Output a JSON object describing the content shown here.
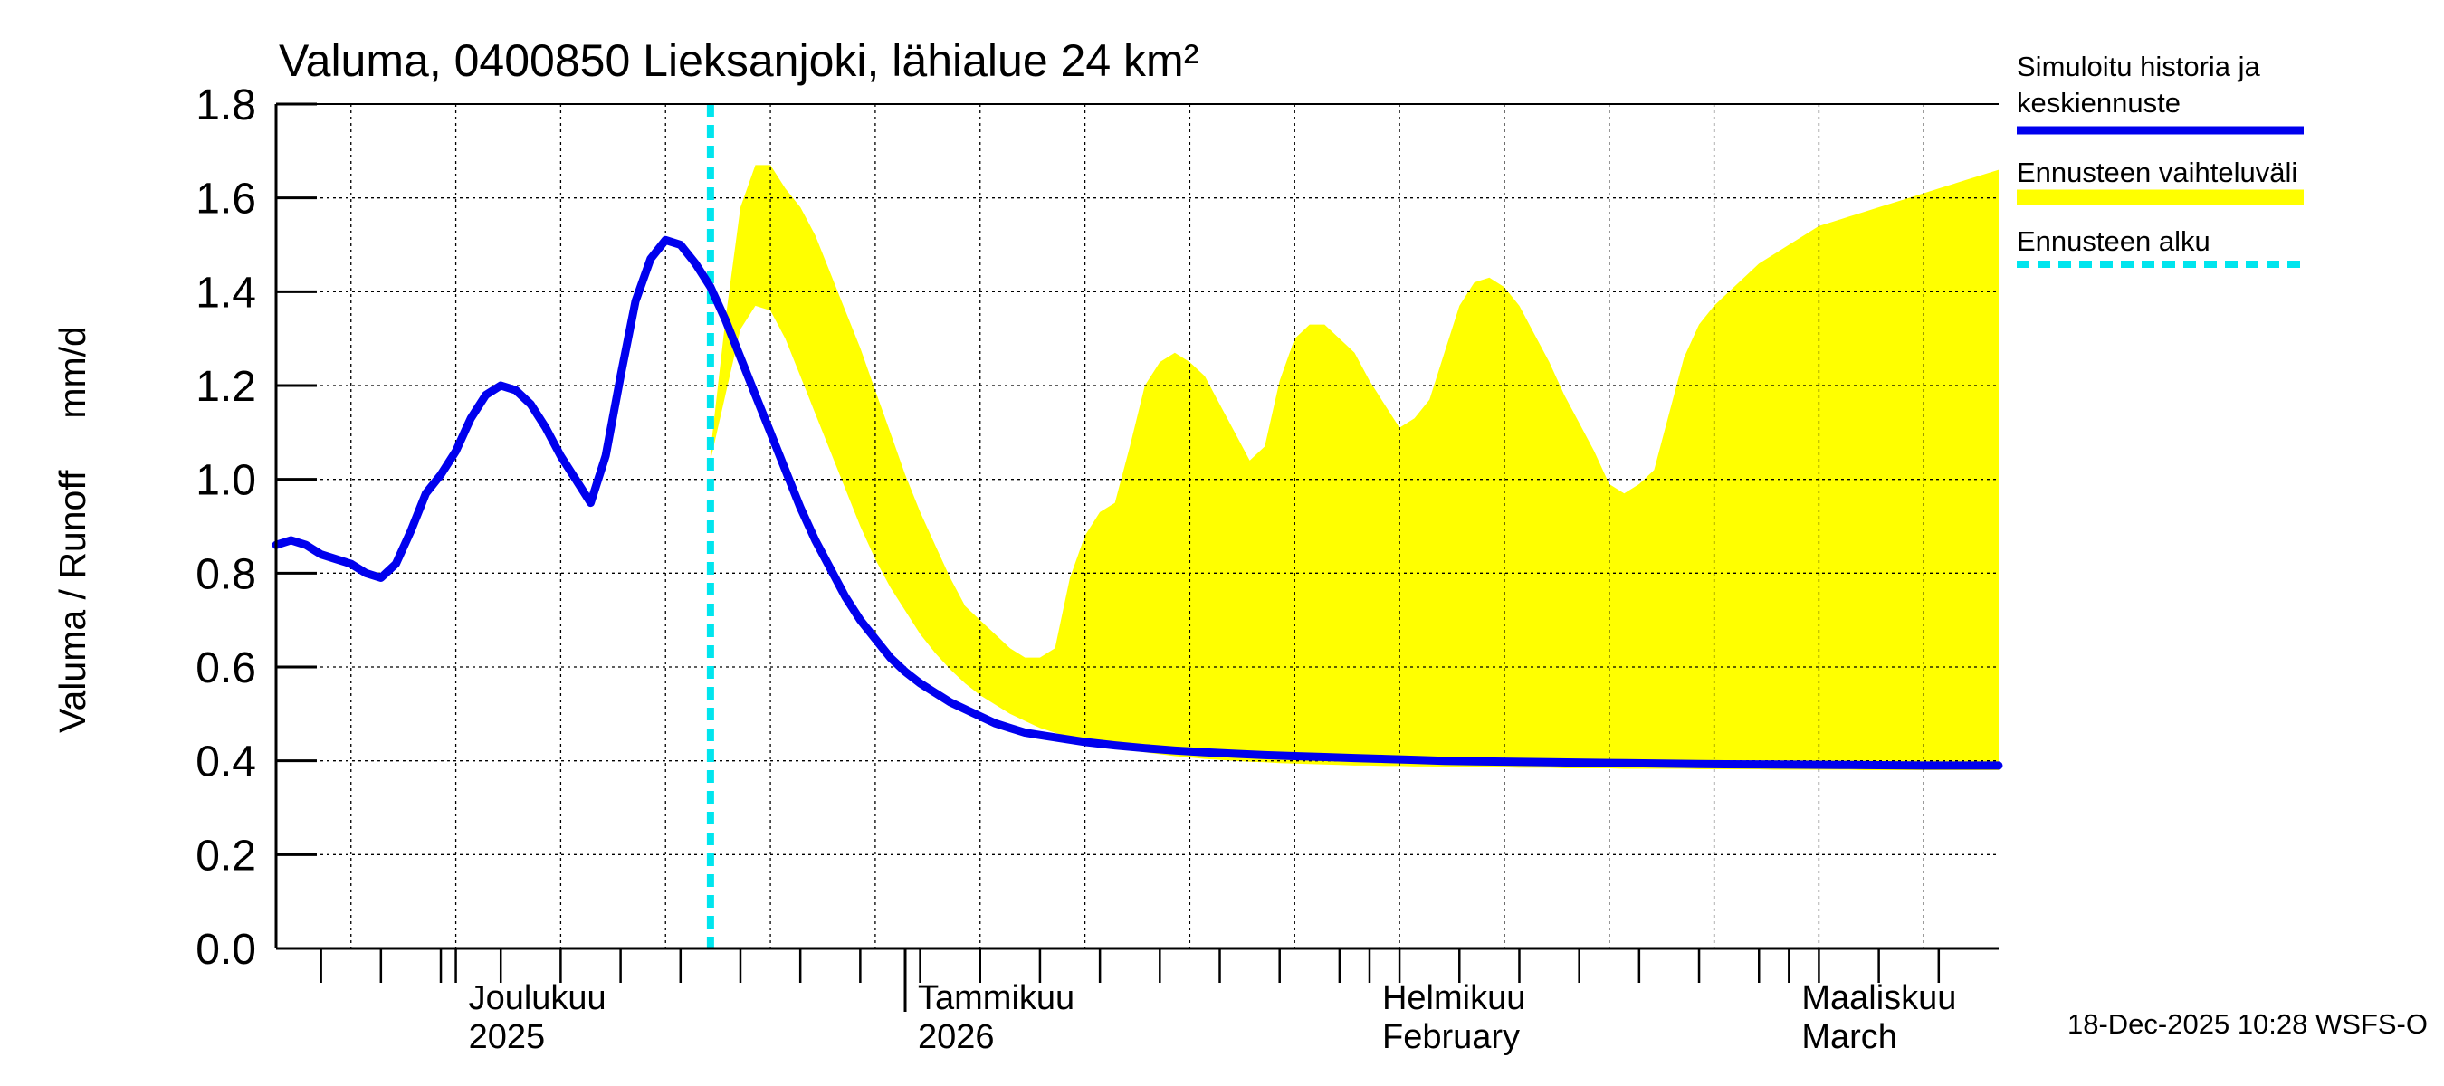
{
  "chart_data": {
    "type": "area",
    "title": "Valuma, 0400850 Lieksanjoki, lähialue 24 km²",
    "ylabel": "Valuma / Runoff     mm/d",
    "xlabel": "",
    "ylim": [
      0,
      1.8
    ],
    "xlim_days": [
      0,
      115
    ],
    "x_unit": "days since 2025-11-19",
    "yticks": [
      "0.0",
      "0.2",
      "0.4",
      "0.6",
      "0.8",
      "1.0",
      "1.2",
      "1.4",
      "1.6",
      "1.8"
    ],
    "month_labels": [
      {
        "day": 12,
        "line1": "Joulukuu",
        "line2": "2025"
      },
      {
        "day": 42,
        "line1": "Tammikuu",
        "line2": "2026"
      },
      {
        "day": 73,
        "line1": "Helmikuu",
        "line2": "February"
      },
      {
        "day": 101,
        "line1": "Maaliskuu",
        "line2": "March"
      }
    ],
    "forecast_start_day": 29,
    "series": [
      {
        "name": "Simuloitu historia ja keskiennuste",
        "color": "#0000ee",
        "style": "line",
        "x": [
          0,
          1,
          2,
          3,
          4,
          5,
          6,
          7,
          8,
          9,
          10,
          11,
          12,
          13,
          14,
          15,
          16,
          17,
          18,
          19,
          20,
          21,
          22,
          23,
          24,
          25,
          26,
          27,
          28,
          29,
          30,
          31,
          32,
          33,
          34,
          35,
          36,
          37,
          38,
          39,
          40,
          41,
          42,
          43,
          44,
          45,
          46,
          47,
          48,
          49,
          50,
          52,
          54,
          56,
          58,
          60,
          62,
          64,
          66,
          68,
          70,
          72,
          74,
          76,
          78,
          80,
          85,
          90,
          95,
          100,
          105,
          110,
          115
        ],
        "values": [
          0.86,
          0.87,
          0.86,
          0.84,
          0.83,
          0.82,
          0.8,
          0.79,
          0.82,
          0.89,
          0.97,
          1.01,
          1.06,
          1.13,
          1.18,
          1.2,
          1.19,
          1.16,
          1.11,
          1.05,
          1.0,
          0.95,
          1.05,
          1.22,
          1.38,
          1.47,
          1.51,
          1.5,
          1.46,
          1.41,
          1.34,
          1.26,
          1.18,
          1.1,
          1.02,
          0.94,
          0.87,
          0.81,
          0.75,
          0.7,
          0.66,
          0.62,
          0.59,
          0.565,
          0.545,
          0.525,
          0.51,
          0.495,
          0.48,
          0.47,
          0.46,
          0.45,
          0.44,
          0.433,
          0.427,
          0.422,
          0.418,
          0.415,
          0.412,
          0.41,
          0.408,
          0.406,
          0.404,
          0.402,
          0.4,
          0.399,
          0.397,
          0.395,
          0.393,
          0.392,
          0.391,
          0.39,
          0.39
        ]
      },
      {
        "name": "Ennusteen vaihteluväli",
        "color": "#ffff00",
        "style": "band",
        "x": [
          29,
          30,
          31,
          32,
          33,
          34,
          35,
          36,
          37,
          38,
          39,
          40,
          41,
          42,
          43,
          44,
          45,
          46,
          47,
          48,
          49,
          50,
          51,
          52,
          53,
          54,
          55,
          56,
          57,
          58,
          59,
          60,
          61,
          62,
          63,
          64,
          65,
          66,
          67,
          68,
          69,
          70,
          71,
          72,
          73,
          74,
          75,
          76,
          77,
          78,
          79,
          80,
          81,
          82,
          83,
          84,
          85,
          86,
          87,
          88,
          89,
          90,
          91,
          92,
          93,
          94,
          95,
          96,
          97,
          98,
          99,
          100,
          101,
          102,
          103,
          104,
          105,
          106,
          107,
          108,
          109,
          110,
          111,
          112,
          113,
          114,
          115
        ],
        "upper": [
          1.06,
          1.34,
          1.58,
          1.67,
          1.67,
          1.62,
          1.58,
          1.52,
          1.44,
          1.36,
          1.28,
          1.19,
          1.1,
          1.01,
          0.93,
          0.86,
          0.79,
          0.73,
          0.7,
          0.67,
          0.64,
          0.62,
          0.62,
          0.64,
          0.79,
          0.88,
          0.93,
          0.95,
          1.07,
          1.2,
          1.25,
          1.27,
          1.25,
          1.22,
          1.16,
          1.1,
          1.04,
          1.07,
          1.21,
          1.3,
          1.33,
          1.33,
          1.3,
          1.27,
          1.21,
          1.16,
          1.11,
          1.13,
          1.17,
          1.27,
          1.37,
          1.42,
          1.43,
          1.41,
          1.37,
          1.31,
          1.25,
          1.18,
          1.12,
          1.06,
          0.99,
          0.97,
          0.99,
          1.02,
          1.14,
          1.26,
          1.33,
          1.37,
          1.4,
          1.43,
          1.46,
          1.48,
          1.5,
          1.52,
          1.54,
          1.55,
          1.56,
          1.57,
          1.58,
          1.59,
          1.6,
          1.61,
          1.62,
          1.63,
          1.64,
          1.65,
          1.66
        ],
        "lower": [
          1.04,
          1.18,
          1.32,
          1.37,
          1.36,
          1.3,
          1.22,
          1.14,
          1.06,
          0.98,
          0.9,
          0.83,
          0.77,
          0.72,
          0.67,
          0.63,
          0.595,
          0.565,
          0.54,
          0.52,
          0.5,
          0.485,
          0.47,
          0.46,
          0.45,
          0.44,
          0.433,
          0.427,
          0.422,
          0.418,
          0.414,
          0.41,
          0.407,
          0.404,
          0.402,
          0.4,
          0.398,
          0.397,
          0.395,
          0.394,
          0.393,
          0.392,
          0.391,
          0.39,
          0.39,
          0.389,
          0.389,
          0.388,
          0.388,
          0.387,
          0.387,
          0.386,
          0.386,
          0.386,
          0.385,
          0.385,
          0.385,
          0.384,
          0.384,
          0.384,
          0.384,
          0.383,
          0.383,
          0.383,
          0.383,
          0.383,
          0.382,
          0.382,
          0.382,
          0.382,
          0.382,
          0.381,
          0.381,
          0.381,
          0.381,
          0.381,
          0.381,
          0.38,
          0.38,
          0.38,
          0.38,
          0.38,
          0.38,
          0.38,
          0.38,
          0.38,
          0.38
        ]
      },
      {
        "name": "Ennusteen alku",
        "color": "#00e5ee",
        "style": "dashed-vertical"
      }
    ],
    "legend": [
      {
        "label_line1": "Simuloitu historia ja",
        "label_line2": "keskiennuste",
        "color": "#0000ee",
        "style": "solid"
      },
      {
        "label_line1": "Ennusteen vaihteluväli",
        "label_line2": "",
        "color": "#ffff00",
        "style": "solid"
      },
      {
        "label_line1": "Ennusteen alku",
        "label_line2": "",
        "color": "#00e5ee",
        "style": "dashed"
      }
    ],
    "legend_position": "right",
    "grid": true,
    "footer": "18-Dec-2025 10:28 WSFS-O"
  }
}
